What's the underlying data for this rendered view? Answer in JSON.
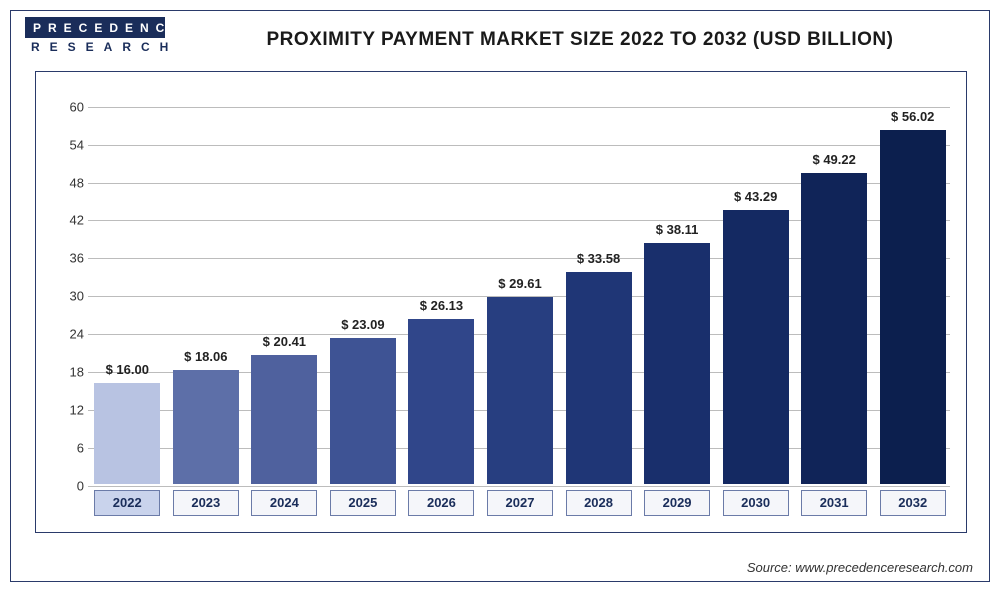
{
  "logo": {
    "line1": "PRECEDENCE",
    "line2": "RESEARCH"
  },
  "title": "PROXIMITY PAYMENT MARKET SIZE 2022 TO 2032 (USD BILLION)",
  "source": "Source: www.precedenceresearch.com",
  "chart": {
    "type": "bar",
    "ylim": [
      0,
      62
    ],
    "ytick_step": 6,
    "ytick_labels": [
      "0",
      "6",
      "12",
      "18",
      "24",
      "30",
      "36",
      "42",
      "48",
      "54",
      "60"
    ],
    "grid_color": "#bcbcbc",
    "background_color": "#ffffff",
    "border_color": "#2a3a6a",
    "label_fontsize": 13,
    "title_fontsize": 19,
    "bar_width_pct": 84,
    "categories": [
      "2022",
      "2023",
      "2024",
      "2025",
      "2026",
      "2027",
      "2028",
      "2029",
      "2030",
      "2031",
      "2032"
    ],
    "values": [
      16.0,
      18.06,
      20.41,
      23.09,
      26.13,
      29.61,
      33.58,
      38.11,
      43.29,
      49.22,
      56.02
    ],
    "value_labels": [
      "$ 16.00",
      "$ 18.06",
      "$ 20.41",
      "$ 23.09",
      "$ 26.13",
      "$ 29.61",
      "$ 33.58",
      "$ 38.11",
      "$ 43.29",
      "$ 49.22",
      "$ 56.02"
    ],
    "bar_colors": [
      "#b8c3e2",
      "#5d6fa8",
      "#4f619e",
      "#3e5394",
      "#30468a",
      "#273e80",
      "#1f3676",
      "#192f6c",
      "#142962",
      "#102458",
      "#0c1f4e"
    ],
    "highlight_index": 0,
    "x_tick_bg": "#f5f6fa",
    "x_tick_highlight_bg": "#c9d3ec",
    "x_tick_border": "#6b7ba8",
    "x_tick_text_color": "#1a2d5a"
  }
}
